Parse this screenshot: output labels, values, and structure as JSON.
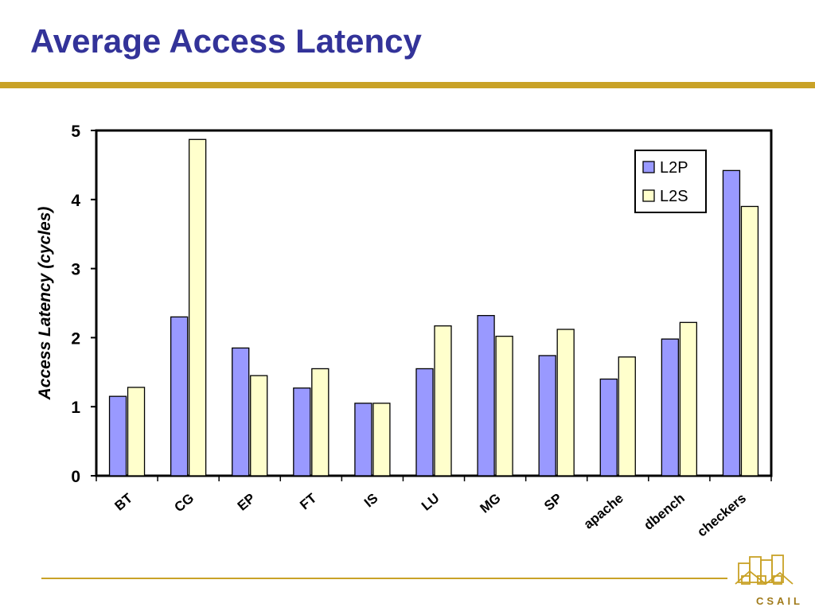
{
  "slide": {
    "title": "Average Access Latency"
  },
  "logo": {
    "text": "CSAIL",
    "icon": "csail-buildings-logo-icon"
  },
  "colors": {
    "title": "#333399",
    "rule": "#c9a227",
    "l2p": "#9999ff",
    "l2s": "#ffffcc"
  },
  "chart_data": {
    "type": "bar",
    "title": "",
    "xlabel": "",
    "ylabel": "Access Latency (cycles)",
    "ylim": [
      0,
      5
    ],
    "yticks": [
      0,
      1,
      2,
      3,
      4,
      5
    ],
    "grid": false,
    "legend_position": "top-right",
    "categories": [
      "BT",
      "CG",
      "EP",
      "FT",
      "IS",
      "LU",
      "MG",
      "SP",
      "apache",
      "dbench",
      "checkers"
    ],
    "series": [
      {
        "name": "L2P",
        "color": "#9999ff",
        "values": [
          1.15,
          2.3,
          1.85,
          1.27,
          1.05,
          1.55,
          2.32,
          1.74,
          1.4,
          1.98,
          4.42
        ]
      },
      {
        "name": "L2S",
        "color": "#ffffcc",
        "values": [
          1.28,
          4.87,
          1.45,
          1.55,
          1.05,
          2.17,
          2.02,
          2.12,
          1.72,
          2.22,
          3.9
        ]
      }
    ]
  }
}
